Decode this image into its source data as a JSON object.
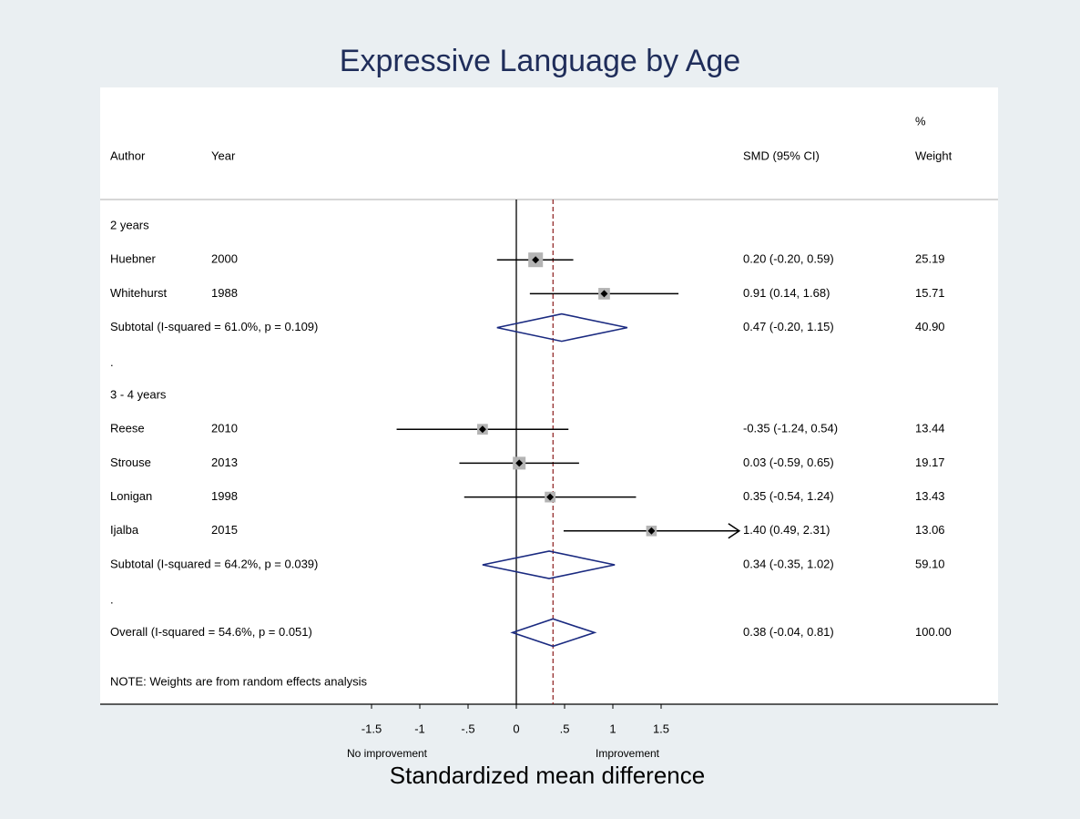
{
  "chart_data": {
    "type": "forest",
    "title": "Expressive Language by Age",
    "xlabel": "Standardized mean difference",
    "left_note": "No improvement",
    "right_note": "Improvement",
    "headers": {
      "author": "Author",
      "year": "Year",
      "smd": "SMD (95% CI)",
      "weight_top": "%",
      "weight": "Weight"
    },
    "note": "NOTE: Weights are from random effects analysis",
    "xlim": [
      -1.5,
      1.5
    ],
    "xticks": [
      -1.5,
      -1,
      {
        "value": -0.5,
        "label": "-.5"
      },
      0,
      {
        "value": 0.5,
        "label": ".5"
      },
      1,
      1.5
    ],
    "colors": {
      "box": "#b4b4b4",
      "ci": "#000000",
      "diamond": "#1a2a80",
      "overall_line": "#8b1a1a",
      "title": "#1f2d5a"
    },
    "groups": [
      {
        "name": "2 years",
        "studies": [
          {
            "author": "Huebner",
            "year": 2000,
            "value": 0.2,
            "lower": -0.2,
            "upper": 0.59,
            "weight": 25.19,
            "value_label": "0.20 (-0.20, 0.59)",
            "weight_label": "25.19"
          },
          {
            "author": "Whitehurst",
            "year": 1988,
            "value": 0.91,
            "lower": 0.14,
            "upper": 1.68,
            "weight": 15.71,
            "value_label": "0.91 (0.14, 1.68)",
            "weight_label": "15.71"
          }
        ],
        "subtotal": {
          "label": "Subtotal  (I-squared = 61.0%, p = 0.109)",
          "value": 0.47,
          "lower": -0.2,
          "upper": 1.15,
          "weight": 40.9,
          "value_label": "0.47 (-0.20, 1.15)",
          "weight_label": "40.90"
        },
        "spacer": "."
      },
      {
        "name": "3 - 4 years",
        "studies": [
          {
            "author": "Reese",
            "year": 2010,
            "value": -0.35,
            "lower": -1.24,
            "upper": 0.54,
            "weight": 13.44,
            "value_label": "-0.35 (-1.24, 0.54)",
            "weight_label": "13.44"
          },
          {
            "author": "Strouse",
            "year": 2013,
            "value": 0.03,
            "lower": -0.59,
            "upper": 0.65,
            "weight": 19.17,
            "value_label": "0.03 (-0.59, 0.65)",
            "weight_label": "19.17"
          },
          {
            "author": "Lonigan",
            "year": 1998,
            "value": 0.35,
            "lower": -0.54,
            "upper": 1.24,
            "weight": 13.43,
            "value_label": "0.35 (-0.54, 1.24)",
            "weight_label": "13.43"
          },
          {
            "author": "Ijalba",
            "year": 2015,
            "value": 1.4,
            "lower": 0.49,
            "upper": 2.31,
            "weight": 13.06,
            "value_label": "1.40 (0.49, 2.31)",
            "weight_label": "13.06",
            "arrow": true
          }
        ],
        "subtotal": {
          "label": "Subtotal  (I-squared = 64.2%, p = 0.039)",
          "value": 0.34,
          "lower": -0.35,
          "upper": 1.02,
          "weight": 59.1,
          "value_label": "0.34 (-0.35, 1.02)",
          "weight_label": "59.10"
        },
        "spacer": "."
      }
    ],
    "overall": {
      "label": "Overall  (I-squared = 54.6%, p = 0.051)",
      "value": 0.38,
      "lower": -0.04,
      "upper": 0.81,
      "weight": 100.0,
      "value_label": "0.38 (-0.04, 0.81)",
      "weight_label": "100.00"
    }
  }
}
